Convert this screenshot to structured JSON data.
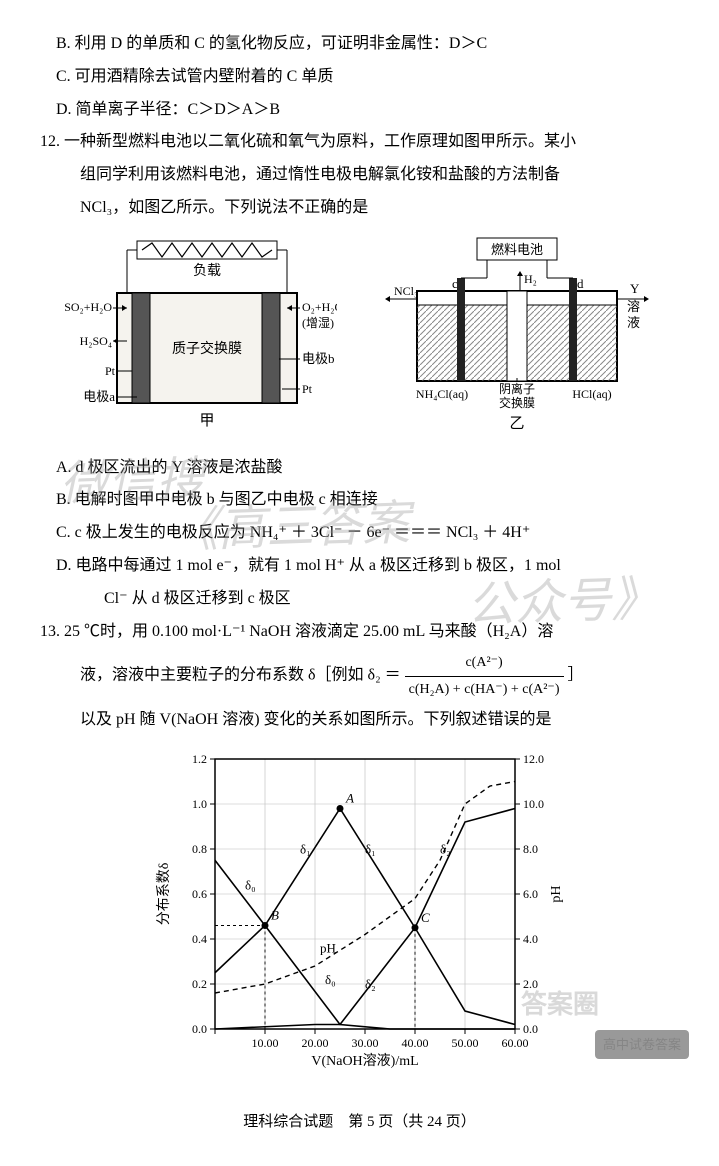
{
  "q11_options": {
    "B": "B. 利用 D 的单质和 C 的氢化物反应，可证明非金属性：D＞C",
    "C": "C. 可用酒精除去试管内壁附着的 C 单质",
    "D": "D. 简单离子半径：C＞D＞A＞B"
  },
  "q12": {
    "stem1": "12. 一种新型燃料电池以二氧化硫和氧气为原料，工作原理如图甲所示。某小",
    "stem2": "组同学利用该燃料电池，通过惰性电极电解氯化铵和盐酸的方法制备",
    "stem3": "NCl₃，如图乙所示。下列说法不正确的是",
    "fig1": {
      "load": "负载",
      "left_gas": "SO₂+H₂O",
      "left_prod": "H₂SO₄",
      "left_mat": "Pt",
      "left_elec": "电极a",
      "membrane": "质子交换膜",
      "right_gas": "O₂+H₂O",
      "right_note": "(增湿)",
      "right_elec": "电极b",
      "right_mat": "Pt",
      "caption": "甲",
      "colors": {
        "elec": "#555555",
        "mem": "#dddddd",
        "body": "#f5f3ee"
      }
    },
    "fig2": {
      "top": "燃料电池",
      "gas": "H₂",
      "left_lbl": "c",
      "right_lbl": "d",
      "nclout": "NCl₃",
      "y_sol": "Y 溶液",
      "left_bath": "NH₄Cl(aq)",
      "right_bath": "HCl(aq)",
      "membrane": "阴离子交换膜",
      "caption": "乙",
      "colors": {
        "elec": "#333333",
        "hatch": "#999999",
        "mem": "#ffffff"
      }
    },
    "options": {
      "A": "A. d 极区流出的 Y 溶液是浓盐酸",
      "B": "B. 电解时图甲中电极 b 与图乙中电极 c 相连接",
      "C": "C. c 极上发生的电极反应为 NH₄⁺ ＋ 3Cl⁻ － 6e⁻ ＝＝＝ NCl₃ ＋ 4H⁺",
      "D1": "D. 电路中每通过 1 mol e⁻，就有 1 mol H⁺ 从 a 极区迁移到 b 极区，1 mol",
      "D2": "Cl⁻ 从 d 极区迁移到 c 极区"
    }
  },
  "q13": {
    "stem1": "13. 25 ℃时，用 0.100 mol·L⁻¹ NaOH 溶液滴定 25.00 mL 马来酸（H₂A）溶",
    "stem2_pre": "液，溶液中主要粒子的分布系数 δ［例如 δ₂ ＝",
    "frac_num": "c(A²⁻)",
    "frac_den": "c(H₂A) + c(HA⁻) + c(A²⁻)",
    "stem2_post": "］",
    "stem3": "以及 pH 随 V(NaOH 溶液) 变化的关系如图所示。下列叙述错误的是",
    "chart": {
      "type": "dual-axis-line",
      "xlabel": "V(NaOH溶液)/mL",
      "ylabel_left": "分布系数δ",
      "ylabel_right": "pH",
      "x_ticks": [
        0,
        10,
        20,
        30,
        40,
        50,
        60
      ],
      "x_tick_labels": [
        "",
        "10.00",
        "20.00",
        "30.00",
        "40.00",
        "50.00",
        "60.00"
      ],
      "y_left_ticks": [
        0,
        0.2,
        0.4,
        0.6,
        0.8,
        1.0,
        1.2
      ],
      "y_right_ticks": [
        0,
        2.0,
        4.0,
        6.0,
        8.0,
        10.0,
        12.0
      ],
      "grid_color": "#bbbbbb",
      "background_color": "#ffffff",
      "line_color": "#000000",
      "line_width": 1.6,
      "dash_line_width": 1.4,
      "font_size_axis": 12,
      "font_size_label": 14,
      "series": {
        "delta0": {
          "label": "δ₀",
          "pts": [
            [
              0,
              0.75
            ],
            [
              10,
              0.46
            ],
            [
              25,
              0.02
            ],
            [
              35,
              0
            ],
            [
              60,
              0
            ]
          ]
        },
        "delta1": {
          "label": "δ₁",
          "pts": [
            [
              0,
              0.25
            ],
            [
              10,
              0.46
            ],
            [
              25,
              0.98
            ],
            [
              40,
              0.45
            ],
            [
              50,
              0.08
            ],
            [
              60,
              0.02
            ]
          ]
        },
        "delta2": {
          "label": "δ₂",
          "pts": [
            [
              0,
              0
            ],
            [
              20,
              0.02
            ],
            [
              25,
              0.02
            ],
            [
              40,
              0.45
            ],
            [
              50,
              0.92
            ],
            [
              60,
              0.98
            ]
          ]
        },
        "pH": {
          "label": "pH",
          "style": "dashed",
          "pts": [
            [
              0,
              1.6
            ],
            [
              10,
              2.0
            ],
            [
              20,
              2.8
            ],
            [
              25,
              3.5
            ],
            [
              30,
              4.2
            ],
            [
              35,
              5.0
            ],
            [
              40,
              5.8
            ],
            [
              45,
              7.5
            ],
            [
              50,
              10.0
            ],
            [
              55,
              10.8
            ],
            [
              60,
              11.0
            ]
          ],
          "axis": "right"
        }
      },
      "points": {
        "A": {
          "x": 25,
          "y": 0.98
        },
        "B": {
          "x": 10,
          "y": 0.46
        },
        "C": {
          "x": 40,
          "y": 0.45
        }
      },
      "annot": {
        "d1_l": "δ₁",
        "d1_r": "δ₁",
        "d0_l": "δ₀",
        "d0_r": "δ₀",
        "d2_l": "δ₂",
        "d2_r": "δ₂",
        "pH": "pH"
      }
    }
  },
  "footer": "理科综合试题　第 5 页（共 24 页）",
  "wm1": "微信搜",
  "wm2": "《高三答案",
  "wm3": "公众号》",
  "corner1": "答案圈",
  "corner2": "高中试卷答案"
}
